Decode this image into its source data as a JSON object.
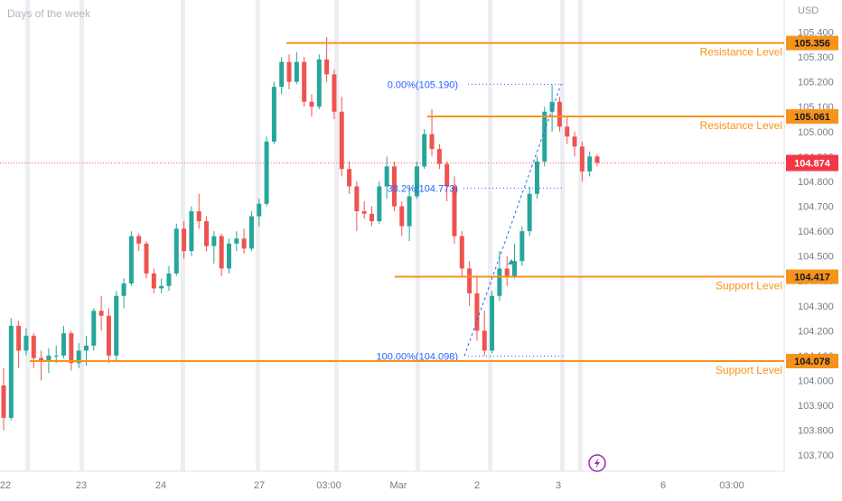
{
  "header": {
    "watermark": "Days of the week",
    "currency": "USD"
  },
  "colors": {
    "up": "#26a69a",
    "down": "#ef5350",
    "level": "#f7931a",
    "fib": "#2962ff",
    "price_badge": "#f23645",
    "axis_text": "#787b86",
    "grid": "#f0f3fa"
  },
  "chart_data": {
    "type": "candlestick",
    "y_axis": {
      "min": 103.65,
      "max": 105.42,
      "ticks": [
        "105.400",
        "105.300",
        "105.200",
        "105.100",
        "105.000",
        "104.900",
        "104.800",
        "104.700",
        "104.600",
        "104.500",
        "104.400",
        "104.300",
        "104.200",
        "104.100",
        "104.000",
        "103.900",
        "103.800",
        "103.700"
      ]
    },
    "x_axis": {
      "ticks": [
        "22",
        "23",
        "24",
        "27",
        "03:00",
        "Mar",
        "2",
        "3",
        "6",
        "03:00"
      ]
    },
    "levels": [
      {
        "name": "Resistance Level",
        "price": 105.356,
        "label": "105.356"
      },
      {
        "name": "Resistance Level",
        "price": 105.061,
        "label": "105.061"
      },
      {
        "name": "Support Level",
        "price": 104.417,
        "label": "104.417"
      },
      {
        "name": "Support Level",
        "price": 104.078,
        "label": "104.078"
      }
    ],
    "fibonacci": [
      {
        "label": "0.00%(105.190)",
        "price": 105.19
      },
      {
        "label": "38.2%(104.773)",
        "price": 104.773
      },
      {
        "label": "100.00%(104.098)",
        "price": 104.098
      }
    ],
    "current_price": {
      "value": 104.874,
      "label": "104.874"
    },
    "candles": [
      [
        103.98,
        104.05,
        103.8,
        103.85
      ],
      [
        103.85,
        104.25,
        103.84,
        104.22
      ],
      [
        104.22,
        104.24,
        104.05,
        104.12
      ],
      [
        104.12,
        104.21,
        104.1,
        104.18
      ],
      [
        104.18,
        104.19,
        104.05,
        104.09
      ],
      [
        104.09,
        104.12,
        104.0,
        104.08
      ],
      [
        104.08,
        104.13,
        104.03,
        104.1
      ],
      [
        104.1,
        104.14,
        104.07,
        104.1
      ],
      [
        104.1,
        104.22,
        104.09,
        104.19
      ],
      [
        104.19,
        104.2,
        104.04,
        104.07
      ],
      [
        104.07,
        104.15,
        104.05,
        104.12
      ],
      [
        104.12,
        104.18,
        104.06,
        104.14
      ],
      [
        104.14,
        104.29,
        104.12,
        104.28
      ],
      [
        104.28,
        104.34,
        104.2,
        104.26
      ],
      [
        104.26,
        104.29,
        104.07,
        104.1
      ],
      [
        104.1,
        104.36,
        104.08,
        104.34
      ],
      [
        104.34,
        104.41,
        104.29,
        104.39
      ],
      [
        104.39,
        104.6,
        104.38,
        104.58
      ],
      [
        104.58,
        104.59,
        104.52,
        104.55
      ],
      [
        104.55,
        104.56,
        104.41,
        104.43
      ],
      [
        104.43,
        104.45,
        104.35,
        104.37
      ],
      [
        104.37,
        104.41,
        104.35,
        104.38
      ],
      [
        104.38,
        104.46,
        104.36,
        104.43
      ],
      [
        104.43,
        104.63,
        104.42,
        104.61
      ],
      [
        104.61,
        104.64,
        104.49,
        104.52
      ],
      [
        104.52,
        104.7,
        104.5,
        104.68
      ],
      [
        104.68,
        104.75,
        104.61,
        104.64
      ],
      [
        104.64,
        104.66,
        104.52,
        104.54
      ],
      [
        104.54,
        104.6,
        104.47,
        104.58
      ],
      [
        104.58,
        104.59,
        104.42,
        104.45
      ],
      [
        104.45,
        104.57,
        104.43,
        104.55
      ],
      [
        104.55,
        104.6,
        104.52,
        104.57
      ],
      [
        104.57,
        104.61,
        104.51,
        104.53
      ],
      [
        104.53,
        104.68,
        104.52,
        104.66
      ],
      [
        104.66,
        104.73,
        104.62,
        104.71
      ],
      [
        104.71,
        104.98,
        104.7,
        104.96
      ],
      [
        104.96,
        105.2,
        104.95,
        105.18
      ],
      [
        105.18,
        105.3,
        105.15,
        105.28
      ],
      [
        105.28,
        105.31,
        105.17,
        105.2
      ],
      [
        105.2,
        105.32,
        105.19,
        105.28
      ],
      [
        105.28,
        105.3,
        105.1,
        105.12
      ],
      [
        105.12,
        105.15,
        105.06,
        105.1
      ],
      [
        105.1,
        105.31,
        105.09,
        105.29
      ],
      [
        105.29,
        105.38,
        105.2,
        105.23
      ],
      [
        105.23,
        105.25,
        105.05,
        105.08
      ],
      [
        105.08,
        105.14,
        104.82,
        104.85
      ],
      [
        104.85,
        104.88,
        104.75,
        104.78
      ],
      [
        104.78,
        104.8,
        104.6,
        104.68
      ],
      [
        104.68,
        104.72,
        104.65,
        104.67
      ],
      [
        104.67,
        104.7,
        104.62,
        104.64
      ],
      [
        104.64,
        104.8,
        104.63,
        104.78
      ],
      [
        104.78,
        104.9,
        104.73,
        104.86
      ],
      [
        104.86,
        104.88,
        104.68,
        104.7
      ],
      [
        104.7,
        104.72,
        104.58,
        104.62
      ],
      [
        104.62,
        104.78,
        104.56,
        104.74
      ],
      [
        104.74,
        104.88,
        104.73,
        104.86
      ],
      [
        104.86,
        105.01,
        104.85,
        104.99
      ],
      [
        104.99,
        105.09,
        104.9,
        104.93
      ],
      [
        104.93,
        104.95,
        104.85,
        104.87
      ],
      [
        104.87,
        104.88,
        104.72,
        104.78
      ],
      [
        104.78,
        104.82,
        104.55,
        104.58
      ],
      [
        104.58,
        104.6,
        104.42,
        104.45
      ],
      [
        104.45,
        104.48,
        104.3,
        104.35
      ],
      [
        104.35,
        104.42,
        104.16,
        104.2
      ],
      [
        104.2,
        104.28,
        104.1,
        104.12
      ],
      [
        104.12,
        104.36,
        104.11,
        104.34
      ],
      [
        104.34,
        104.52,
        104.32,
        104.45
      ],
      [
        104.45,
        104.5,
        104.38,
        104.42
      ],
      [
        104.42,
        104.55,
        104.41,
        104.48
      ],
      [
        104.48,
        104.62,
        104.46,
        104.6
      ],
      [
        104.6,
        104.78,
        104.58,
        104.75
      ],
      [
        104.75,
        104.9,
        104.73,
        104.88
      ],
      [
        104.88,
        105.1,
        104.86,
        105.08
      ],
      [
        105.08,
        105.19,
        105.0,
        105.12
      ],
      [
        105.12,
        105.14,
        105.0,
        105.02
      ],
      [
        105.02,
        105.06,
        104.95,
        104.98
      ],
      [
        104.98,
        105.0,
        104.9,
        104.94
      ],
      [
        104.94,
        104.96,
        104.8,
        104.84
      ],
      [
        104.84,
        104.92,
        104.82,
        104.9
      ],
      [
        104.9,
        104.91,
        104.86,
        104.874
      ]
    ]
  }
}
